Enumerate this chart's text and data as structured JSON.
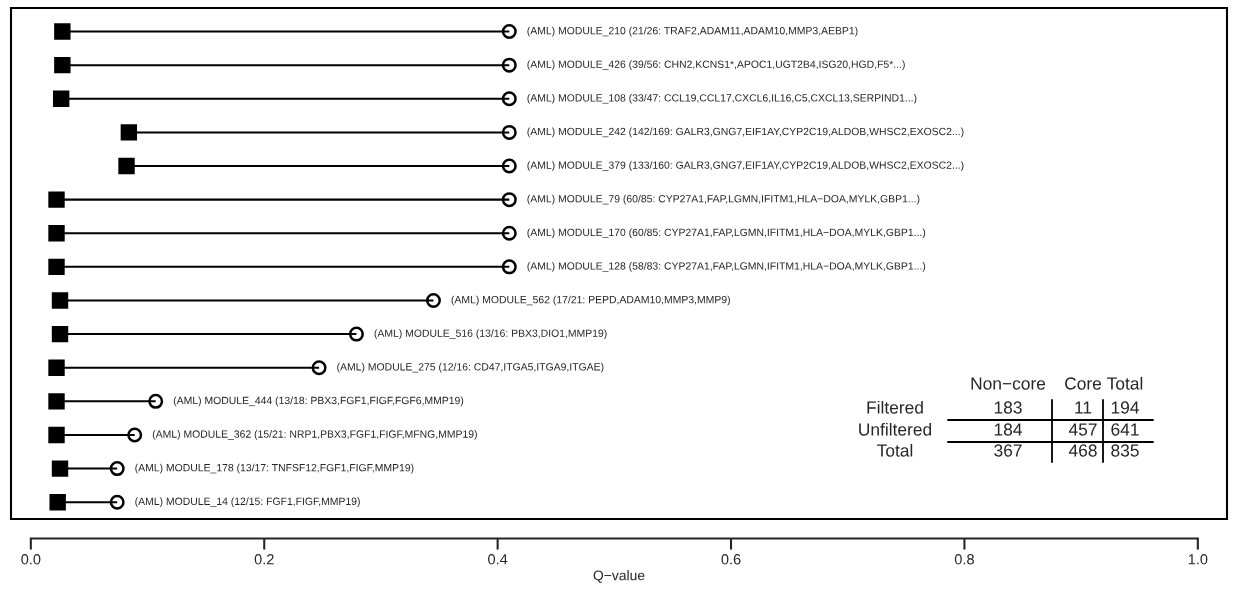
{
  "chart_data": {
    "type": "bar",
    "orientation": "horizontal",
    "xlabel": "Q−value",
    "categories": [
      "(AML) MODULE_210 (21/26: TRAF2,ADAM11,ADAM10,MMP3,AEBP1)",
      "(AML) MODULE_426 (39/56: CHN2,KCNS1*,APOC1,UGT2B4,ISG20,HGD,F5*...)",
      "(AML) MODULE_108 (33/47: CCL19,CCL17,CXCL6,IL16,C5,CXCL13,SERPIND1...)",
      "(AML) MODULE_242 (142/169: GALR3,GNG7,EIF1AY,CYP2C19,ALDOB,WHSC2,EXOSC2...)",
      "(AML) MODULE_379 (133/160: GALR3,GNG7,EIF1AY,CYP2C19,ALDOB,WHSC2,EXOSC2...)",
      "(AML) MODULE_79 (60/85: CYP27A1,FAP,LGMN,IFITM1,HLA−DOA,MYLK,GBP1...)",
      "(AML) MODULE_170 (60/85: CYP27A1,FAP,LGMN,IFITM1,HLA−DOA,MYLK,GBP1...)",
      "(AML) MODULE_128 (58/83: CYP27A1,FAP,LGMN,IFITM1,HLA−DOA,MYLK,GBP1...)",
      "(AML) MODULE_562 (17/21: PEPD,ADAM10,MMP3,MMP9)",
      "(AML) MODULE_516 (13/16: PBX3,DIO1,MMP19)",
      "(AML) MODULE_275 (12/16: CD47,ITGA5,ITGA9,ITGAE)",
      "(AML) MODULE_444 (13/18: PBX3,FGF1,FIGF,FGF6,MMP19)",
      "(AML) MODULE_362 (15/21: NRP1,PBX3,FGF1,FIGF,MFNG,MMP19)",
      "(AML) MODULE_178 (13/17: TNFSF12,FGF1,FIGF,MMP19)",
      "(AML) MODULE_14 (12/15: FGF1,FIGF,MMP19)"
    ],
    "series": [
      {
        "color": "#000000",
        "base": [
          0.027,
          0.027,
          0.026,
          0.084,
          0.082,
          0.022,
          0.022,
          0.022,
          0.025,
          0.025,
          0.022,
          0.022,
          0.022,
          0.025,
          0.023
        ],
        "values": [
          0.383,
          0.383,
          0.384,
          0.326,
          0.328,
          0.388,
          0.388,
          0.388,
          0.32,
          0.254,
          0.225,
          0.085,
          0.067,
          0.049,
          0.051
        ]
      },
      {
        "type": "scatter",
        "marker": "square",
        "color": "#000000",
        "values": [
          0.027,
          0.027,
          0.026,
          0.084,
          0.082,
          0.022,
          0.022,
          0.022,
          0.025,
          0.025,
          0.022,
          0.022,
          0.022,
          0.025,
          0.023
        ]
      },
      {
        "type": "scatter",
        "marker": "circle",
        "color": "#000000",
        "values": [
          0.41,
          0.41,
          0.41,
          0.41,
          0.41,
          0.41,
          0.41,
          0.41,
          0.345,
          0.279,
          0.247,
          0.107,
          0.089,
          0.074,
          0.074
        ]
      }
    ],
    "xlim": [
      -0.017,
      1.025
    ],
    "xticks": [
      {
        "value": 0,
        "label": "0.0"
      },
      0.2,
      0.4,
      0.6,
      0.8,
      {
        "value": 1,
        "label": "1.0"
      }
    ],
    "legend": false,
    "annotations": [
      "Non−core",
      "Core",
      "Total",
      "Filtered",
      "183",
      "11",
      "194",
      "Unfiltered",
      "184",
      "457",
      "641",
      "Total",
      "367",
      "468",
      "835"
    ]
  }
}
